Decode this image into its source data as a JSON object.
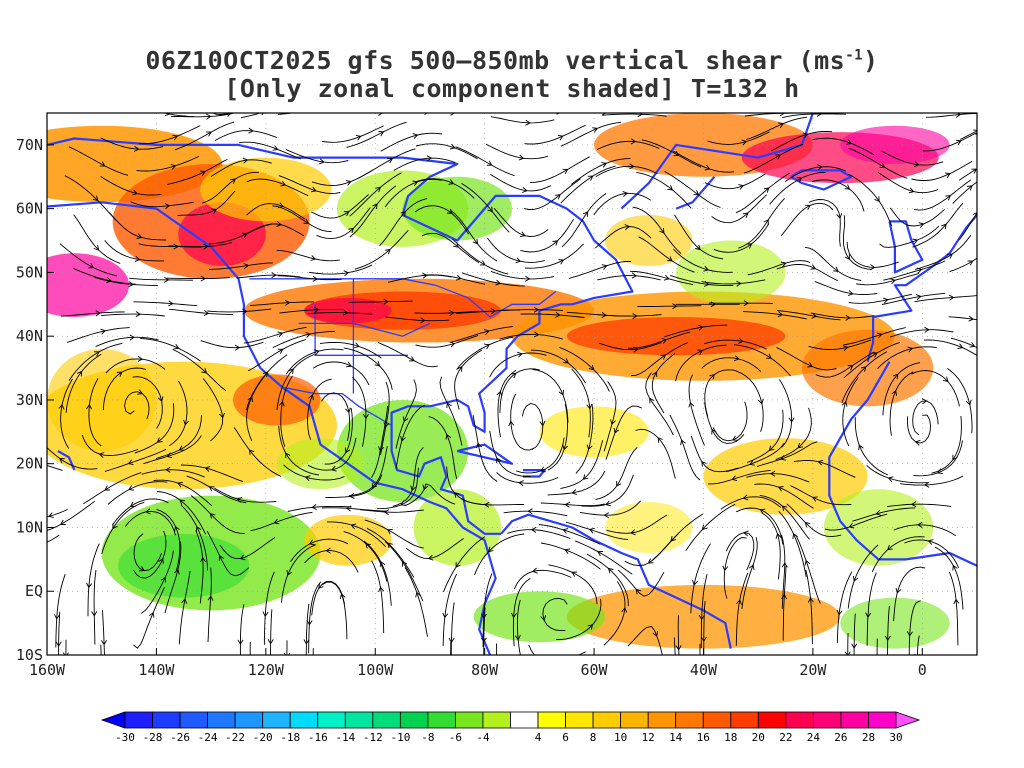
{
  "title": {
    "line1": "06Z10OCT2025 gfs 500–850mb vertical shear (ms",
    "line1_exponent": "-1",
    "line1_suffix": ")",
    "line2": "[Only zonal component shaded] T=132 h"
  },
  "map": {
    "lon_range": [
      -160,
      10
    ],
    "lat_range": [
      -10,
      75
    ],
    "lon_ticks": [
      {
        "value": -160,
        "label": "160W"
      },
      {
        "value": -140,
        "label": "140W"
      },
      {
        "value": -120,
        "label": "120W"
      },
      {
        "value": -100,
        "label": "100W"
      },
      {
        "value": -80,
        "label": "80W"
      },
      {
        "value": -60,
        "label": "60W"
      },
      {
        "value": -40,
        "label": "40W"
      },
      {
        "value": -20,
        "label": "20W"
      },
      {
        "value": 0,
        "label": "0"
      }
    ],
    "lat_ticks": [
      {
        "value": 70,
        "label": "70N"
      },
      {
        "value": 60,
        "label": "60N"
      },
      {
        "value": 50,
        "label": "50N"
      },
      {
        "value": 40,
        "label": "40N"
      },
      {
        "value": 30,
        "label": "30N"
      },
      {
        "value": 20,
        "label": "20N"
      },
      {
        "value": 10,
        "label": "10N"
      },
      {
        "value": 0,
        "label": "EQ"
      },
      {
        "value": -10,
        "label": "10S"
      }
    ],
    "coastline_color": "#2a3cff",
    "streamline_color": "#000000"
  },
  "colorbar": {
    "labels": [
      "-30",
      "-28",
      "-26",
      "-24",
      "-22",
      "-20",
      "-18",
      "-16",
      "-14",
      "-12",
      "-10",
      "-8",
      "-6",
      "-4",
      "4",
      "6",
      "8",
      "10",
      "12",
      "14",
      "16",
      "18",
      "20",
      "22",
      "24",
      "26",
      "28",
      "30"
    ],
    "colors": [
      "#1e1eff",
      "#1e3cff",
      "#1e5aff",
      "#1e78ff",
      "#1e96ff",
      "#1eb4ff",
      "#00dcff",
      "#00f0c8",
      "#00e6a0",
      "#00dc78",
      "#00d250",
      "#32dc32",
      "#78e61e",
      "#b4f01e",
      "#ffffff",
      "#ffff00",
      "#ffe600",
      "#ffcc00",
      "#ffb400",
      "#ff9600",
      "#ff7800",
      "#ff5a00",
      "#ff3c00",
      "#ff0000",
      "#ff0050",
      "#ff0078",
      "#ff00a0",
      "#ff00c8"
    ],
    "under_color": "#0000ff",
    "over_color": "#ff50ff"
  }
}
